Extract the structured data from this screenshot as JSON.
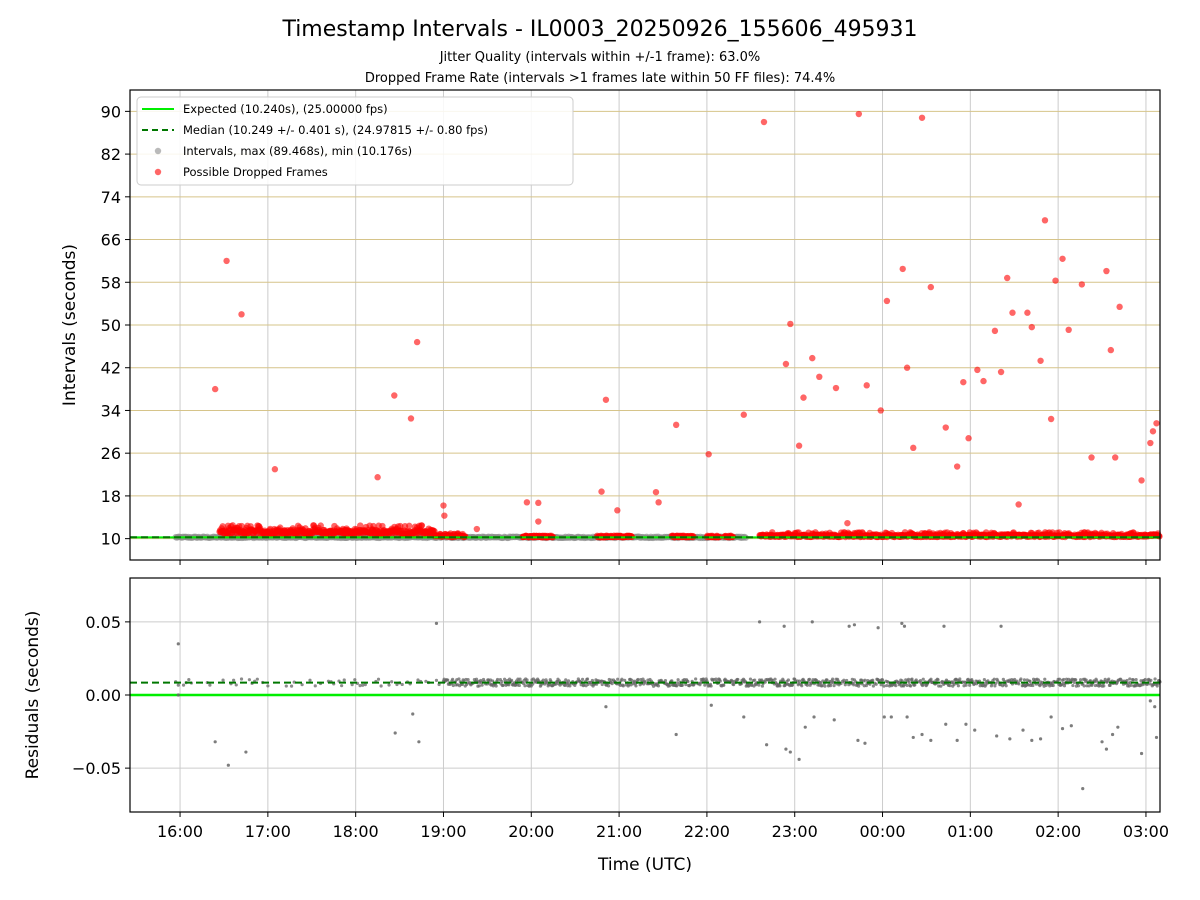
{
  "title": "Timestamp Intervals - IL0003_20250926_155606_495931",
  "subtitles": [
    "Jitter Quality (intervals within +/-1 frame): 63.0%",
    "Dropped Frame Rate (intervals >1 frames late within 50 FF files): 74.4%"
  ],
  "colors": {
    "expected": "#00ee00",
    "median": "#007700",
    "intervals": "#8c8c8c",
    "dropped": "#ff0000",
    "residual_points": "#666666",
    "grid_gray": "#cccccc",
    "grid_gold": "#d6c48a"
  },
  "chart_data": [
    {
      "type": "scatter",
      "x_axis": {
        "label": "Time (UTC)",
        "range_hours": [
          15.43,
          27.16
        ],
        "ticks": [
          "16:00",
          "17:00",
          "18:00",
          "19:00",
          "20:00",
          "21:00",
          "22:00",
          "23:00",
          "00:00",
          "01:00",
          "02:00",
          "03:00"
        ],
        "tick_hours": [
          16,
          17,
          18,
          19,
          20,
          21,
          22,
          23,
          24,
          25,
          26,
          27
        ]
      },
      "y_axis": {
        "label": "Intervals (seconds)",
        "range": [
          6.0,
          94.0
        ],
        "ticks": [
          "10",
          "18",
          "26",
          "34",
          "42",
          "50",
          "58",
          "66",
          "74",
          "82",
          "90"
        ],
        "tick_values": [
          10,
          18,
          26,
          34,
          42,
          50,
          58,
          66,
          74,
          82,
          90
        ]
      },
      "grid": "vertical gray at x ticks, horizontal gold at y ticks",
      "legend_position": "top-left",
      "legend": [
        "Expected (10.240s), (25.00000 fps)",
        "Median (10.249 +/- 0.401 s), (24.97815 +/- 0.80 fps)",
        "Intervals, max (89.468s), min (10.176s)",
        "Possible Dropped Frames"
      ],
      "expected_value": 10.24,
      "median_value": 10.249,
      "interval_stats": {
        "max": 89.468,
        "min": 10.176
      },
      "baseline_intervals": {
        "approx_value": 10.25,
        "span_hours": [
          15.95,
          22.45
        ]
      },
      "baseline_dropped": [
        {
          "span_hours": [
            16.45,
            18.9
          ],
          "values_min": 10.8,
          "values_max": 12.5
        },
        {
          "span_hours": [
            18.9,
            19.25
          ],
          "values_min": 10.3,
          "values_max": 11.0
        },
        {
          "span_hours": [
            22.6,
            27.16
          ],
          "values_min": 10.3,
          "values_max": 11.2
        }
      ],
      "baseline_dropped_clusters_hours": [
        [
          19.9,
          20.25
        ],
        [
          20.75,
          21.15
        ],
        [
          21.6,
          21.85
        ],
        [
          22.0,
          22.15
        ],
        [
          22.2,
          22.3
        ]
      ],
      "dropped_outliers": [
        [
          16.4,
          38.0
        ],
        [
          16.53,
          62.0
        ],
        [
          16.7,
          52.0
        ],
        [
          17.08,
          23.0
        ],
        [
          18.25,
          21.5
        ],
        [
          18.44,
          36.8
        ],
        [
          18.63,
          32.5
        ],
        [
          18.7,
          46.8
        ],
        [
          19.0,
          16.2
        ],
        [
          19.01,
          14.3
        ],
        [
          19.38,
          11.8
        ],
        [
          19.95,
          16.8
        ],
        [
          20.08,
          16.7
        ],
        [
          20.08,
          13.2
        ],
        [
          20.8,
          18.8
        ],
        [
          20.85,
          36.0
        ],
        [
          20.98,
          15.3
        ],
        [
          21.42,
          18.7
        ],
        [
          21.45,
          16.8
        ],
        [
          21.65,
          31.3
        ],
        [
          22.02,
          25.8
        ],
        [
          22.42,
          33.2
        ],
        [
          22.65,
          88.0
        ],
        [
          22.9,
          42.7
        ],
        [
          22.95,
          50.2
        ],
        [
          23.05,
          27.4
        ],
        [
          23.1,
          36.4
        ],
        [
          23.2,
          43.8
        ],
        [
          23.28,
          40.3
        ],
        [
          23.47,
          38.2
        ],
        [
          23.6,
          12.9
        ],
        [
          23.73,
          89.5
        ],
        [
          23.82,
          38.7
        ],
        [
          23.98,
          34.0
        ],
        [
          24.05,
          54.5
        ],
        [
          24.23,
          60.5
        ],
        [
          24.28,
          42.0
        ],
        [
          24.35,
          27.0
        ],
        [
          24.45,
          88.8
        ],
        [
          24.55,
          57.1
        ],
        [
          24.72,
          30.8
        ],
        [
          24.85,
          23.5
        ],
        [
          24.92,
          39.3
        ],
        [
          24.98,
          28.8
        ],
        [
          25.08,
          41.6
        ],
        [
          25.15,
          39.5
        ],
        [
          25.28,
          48.9
        ],
        [
          25.35,
          41.2
        ],
        [
          25.42,
          58.8
        ],
        [
          25.48,
          52.3
        ],
        [
          25.55,
          16.4
        ],
        [
          25.65,
          52.3
        ],
        [
          25.7,
          49.6
        ],
        [
          25.8,
          43.3
        ],
        [
          25.85,
          69.6
        ],
        [
          25.92,
          32.4
        ],
        [
          25.97,
          58.3
        ],
        [
          26.05,
          62.4
        ],
        [
          26.12,
          49.1
        ],
        [
          26.27,
          57.6
        ],
        [
          26.38,
          25.2
        ],
        [
          26.55,
          60.1
        ],
        [
          26.6,
          45.3
        ],
        [
          26.65,
          25.2
        ],
        [
          26.7,
          53.4
        ],
        [
          26.95,
          20.9
        ],
        [
          27.05,
          27.9
        ],
        [
          27.08,
          30.1
        ],
        [
          27.12,
          31.6
        ]
      ]
    },
    {
      "type": "scatter",
      "x_axis": {
        "label": "Time (UTC)",
        "range_hours": [
          15.43,
          27.16
        ]
      },
      "y_axis": {
        "label": "Residuals (seconds)",
        "range": [
          -0.08,
          0.08
        ],
        "ticks": [
          "−0.05",
          "0.00",
          "0.05"
        ],
        "tick_values": [
          -0.05,
          0.0,
          0.05
        ]
      },
      "zero_line": 0.0,
      "median_residual": 0.0085,
      "residual_band": {
        "dense_spans_hours": [
          [
            19.0,
            27.16
          ]
        ],
        "sparse_spans_hours": [
          [
            15.95,
            19.0
          ]
        ],
        "center": 0.0085,
        "spread": 0.0025
      },
      "residual_outliers": [
        [
          15.98,
          0.035
        ],
        [
          15.98,
          0.0
        ],
        [
          16.4,
          -0.032
        ],
        [
          16.55,
          -0.048
        ],
        [
          16.75,
          -0.039
        ],
        [
          18.45,
          -0.026
        ],
        [
          18.65,
          -0.013
        ],
        [
          18.72,
          -0.032
        ],
        [
          18.92,
          0.049
        ],
        [
          20.85,
          -0.008
        ],
        [
          21.65,
          -0.027
        ],
        [
          22.05,
          -0.007
        ],
        [
          22.42,
          -0.015
        ],
        [
          22.6,
          0.05
        ],
        [
          22.68,
          -0.034
        ],
        [
          22.88,
          0.047
        ],
        [
          22.9,
          -0.037
        ],
        [
          22.95,
          -0.039
        ],
        [
          23.05,
          -0.044
        ],
        [
          23.12,
          -0.022
        ],
        [
          23.2,
          0.05
        ],
        [
          23.22,
          -0.015
        ],
        [
          23.45,
          -0.017
        ],
        [
          23.62,
          0.047
        ],
        [
          23.68,
          0.048
        ],
        [
          23.72,
          -0.031
        ],
        [
          23.8,
          -0.033
        ],
        [
          23.95,
          0.046
        ],
        [
          24.02,
          -0.015
        ],
        [
          24.1,
          -0.015
        ],
        [
          24.22,
          0.049
        ],
        [
          24.25,
          0.047
        ],
        [
          24.28,
          -0.015
        ],
        [
          24.35,
          -0.029
        ],
        [
          24.45,
          -0.027
        ],
        [
          24.55,
          -0.031
        ],
        [
          24.7,
          0.047
        ],
        [
          24.72,
          -0.02
        ],
        [
          24.85,
          -0.031
        ],
        [
          24.95,
          -0.02
        ],
        [
          25.05,
          -0.024
        ],
        [
          25.3,
          -0.028
        ],
        [
          25.35,
          0.047
        ],
        [
          25.45,
          -0.03
        ],
        [
          25.6,
          -0.024
        ],
        [
          25.7,
          -0.031
        ],
        [
          25.8,
          -0.03
        ],
        [
          25.92,
          -0.015
        ],
        [
          26.05,
          -0.023
        ],
        [
          26.15,
          -0.021
        ],
        [
          26.28,
          -0.064
        ],
        [
          26.5,
          -0.032
        ],
        [
          26.55,
          -0.037
        ],
        [
          26.62,
          -0.027
        ],
        [
          26.68,
          -0.022
        ],
        [
          26.95,
          -0.04
        ],
        [
          27.05,
          -0.004
        ],
        [
          27.1,
          -0.008
        ],
        [
          27.12,
          -0.029
        ]
      ]
    }
  ]
}
